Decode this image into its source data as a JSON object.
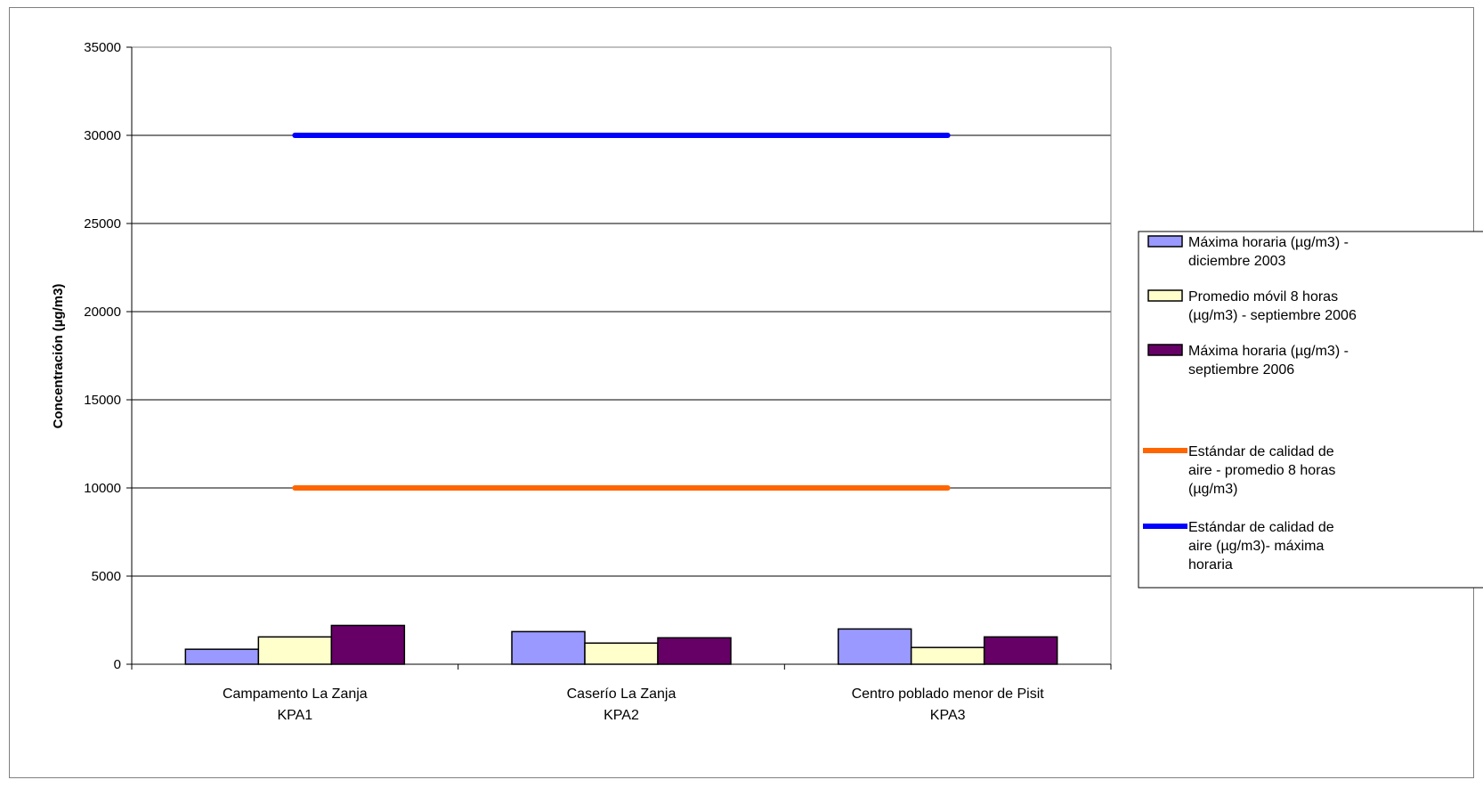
{
  "chart_data": {
    "type": "bar",
    "title": "",
    "xlabel": "",
    "ylabel": "Concentración (µg/m3)",
    "ylim": [
      0,
      35000
    ],
    "yticks": [
      0,
      5000,
      10000,
      15000,
      20000,
      25000,
      30000,
      35000
    ],
    "grid": true,
    "legend_position": "right",
    "categories": [
      [
        "Campamento La Zanja",
        "KPA1"
      ],
      [
        "Caserío La Zanja",
        "KPA2"
      ],
      [
        "Centro poblado menor de Pisit",
        "KPA3"
      ]
    ],
    "series": [
      {
        "name": [
          "Máxima horaria (µg/m3) -",
          "diciembre 2003"
        ],
        "kind": "bar",
        "color": "#9999ff",
        "values": [
          850,
          1850,
          2000
        ]
      },
      {
        "name": [
          "Promedio móvil 8 horas",
          "(µg/m3) - septiembre 2006"
        ],
        "kind": "bar",
        "color": "#ffffcc",
        "values": [
          1550,
          1200,
          950
        ]
      },
      {
        "name": [
          "Máxima horaria (µg/m3) -",
          "septiembre 2006"
        ],
        "kind": "bar",
        "color": "#660066",
        "values": [
          2200,
          1500,
          1550
        ]
      },
      {
        "name": [
          "Estándar de calidad de",
          "aire - promedio 8 horas",
          "(µg/m3)"
        ],
        "kind": "line",
        "color": "#ff6600",
        "values": [
          10000,
          10000,
          10000
        ]
      },
      {
        "name": [
          "Estándar de calidad de",
          "aire (µg/m3)- máxima",
          "horaria"
        ],
        "kind": "line",
        "color": "#0000ff",
        "values": [
          30000,
          30000,
          30000
        ]
      }
    ]
  }
}
